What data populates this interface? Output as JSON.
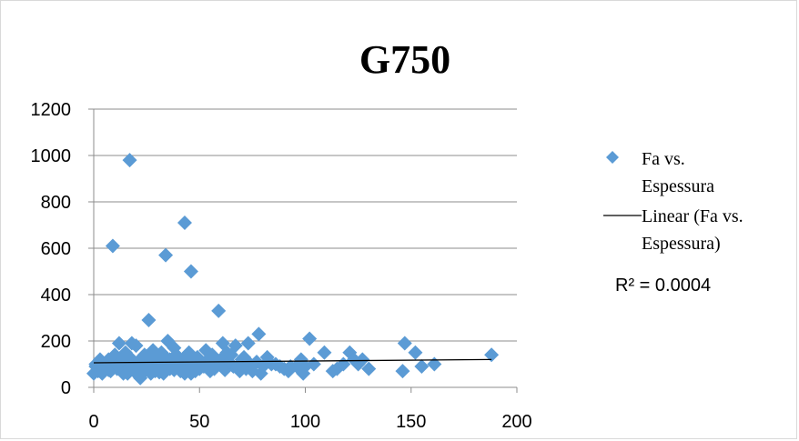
{
  "chart_data": {
    "type": "scatter",
    "title": "G750",
    "xlabel": "",
    "ylabel": "",
    "xlim": [
      0,
      200
    ],
    "ylim": [
      0,
      1200
    ],
    "xticks": [
      0,
      50,
      100,
      150,
      200
    ],
    "yticks": [
      0,
      200,
      400,
      600,
      800,
      1000,
      1200
    ],
    "grid": "horizontal",
    "legend_position": "right",
    "marker_color": "#5B9BD5",
    "trendline_color": "#000000",
    "series": [
      {
        "name": "Fa vs. Espessura",
        "points": [
          [
            17,
            980
          ],
          [
            43,
            710
          ],
          [
            9,
            610
          ],
          [
            34,
            570
          ],
          [
            46,
            500
          ],
          [
            59,
            330
          ],
          [
            26,
            290
          ],
          [
            78,
            230
          ],
          [
            102,
            210
          ],
          [
            147,
            190
          ],
          [
            152,
            150
          ],
          [
            188,
            140
          ],
          [
            161,
            100
          ],
          [
            155,
            90
          ],
          [
            146,
            70
          ],
          [
            130,
            80
          ],
          [
            127,
            120
          ],
          [
            125,
            100
          ],
          [
            121,
            150
          ],
          [
            115,
            80
          ],
          [
            113,
            70
          ],
          [
            109,
            150
          ],
          [
            98,
            120
          ],
          [
            99,
            60
          ],
          [
            96,
            90
          ],
          [
            93,
            90
          ],
          [
            90,
            80
          ],
          [
            86,
            100
          ],
          [
            82,
            130
          ],
          [
            79,
            60
          ],
          [
            77,
            110
          ],
          [
            73,
            190
          ],
          [
            72,
            80
          ],
          [
            70,
            120
          ],
          [
            67,
            180
          ],
          [
            66,
            90
          ],
          [
            63,
            150
          ],
          [
            61,
            190
          ],
          [
            60,
            120
          ],
          [
            58,
            100
          ],
          [
            56,
            140
          ],
          [
            55,
            70
          ],
          [
            53,
            160
          ],
          [
            51,
            110
          ],
          [
            50,
            80
          ],
          [
            49,
            130
          ],
          [
            47,
            90
          ],
          [
            46,
            60
          ],
          [
            45,
            150
          ],
          [
            44,
            100
          ],
          [
            42,
            120
          ],
          [
            41,
            70
          ],
          [
            40,
            90
          ],
          [
            39,
            140
          ],
          [
            38,
            170
          ],
          [
            37,
            110
          ],
          [
            36,
            80
          ],
          [
            35,
            200
          ],
          [
            34,
            130
          ],
          [
            33,
            60
          ],
          [
            32,
            150
          ],
          [
            31,
            90
          ],
          [
            30,
            110
          ],
          [
            29,
            70
          ],
          [
            28,
            160
          ],
          [
            27,
            120
          ],
          [
            26,
            80
          ],
          [
            25,
            100
          ],
          [
            24,
            140
          ],
          [
            23,
            60
          ],
          [
            22,
            40
          ],
          [
            21,
            110
          ],
          [
            20,
            180
          ],
          [
            19,
            70
          ],
          [
            18,
            190
          ],
          [
            17,
            130
          ],
          [
            16,
            90
          ],
          [
            15,
            150
          ],
          [
            14,
            60
          ],
          [
            13,
            110
          ],
          [
            12,
            190
          ],
          [
            11,
            80
          ],
          [
            10,
            140
          ],
          [
            9,
            100
          ],
          [
            8,
            70
          ],
          [
            7,
            120
          ],
          [
            6,
            90
          ],
          [
            5,
            80
          ],
          [
            4,
            60
          ],
          [
            3,
            100
          ],
          [
            2,
            70
          ],
          [
            1,
            90
          ],
          [
            0,
            60
          ],
          [
            1,
            100
          ],
          [
            3,
            120
          ],
          [
            5,
            95
          ],
          [
            7,
            75
          ],
          [
            11,
            95
          ],
          [
            14,
            120
          ],
          [
            16,
            60
          ],
          [
            19,
            100
          ],
          [
            21,
            70
          ],
          [
            23,
            130
          ],
          [
            24,
            90
          ],
          [
            27,
            60
          ],
          [
            28,
            100
          ],
          [
            29,
            140
          ],
          [
            31,
            65
          ],
          [
            33,
            100
          ],
          [
            35,
            80
          ],
          [
            36,
            120
          ],
          [
            38,
            75
          ],
          [
            40,
            130
          ],
          [
            41,
            100
          ],
          [
            43,
            60
          ],
          [
            44,
            130
          ],
          [
            47,
            110
          ],
          [
            48,
            70
          ],
          [
            50,
            100
          ],
          [
            52,
            90
          ],
          [
            54,
            120
          ],
          [
            57,
            80
          ],
          [
            59,
            100
          ],
          [
            62,
            75
          ],
          [
            64,
            110
          ],
          [
            65,
            140
          ],
          [
            68,
            90
          ],
          [
            69,
            70
          ],
          [
            71,
            130
          ],
          [
            74,
            100
          ],
          [
            75,
            70
          ],
          [
            80,
            90
          ],
          [
            84,
            100
          ],
          [
            88,
            90
          ],
          [
            92,
            70
          ],
          [
            97,
            100
          ],
          [
            100,
            90
          ],
          [
            104,
            100
          ],
          [
            118,
            100
          ],
          [
            123,
            120
          ]
        ]
      }
    ],
    "trendline": {
      "name": "Linear (Fa vs. Espessura)",
      "x": [
        0,
        188
      ],
      "y": [
        106,
        120
      ]
    },
    "annotation": "R² = 0.0004"
  }
}
